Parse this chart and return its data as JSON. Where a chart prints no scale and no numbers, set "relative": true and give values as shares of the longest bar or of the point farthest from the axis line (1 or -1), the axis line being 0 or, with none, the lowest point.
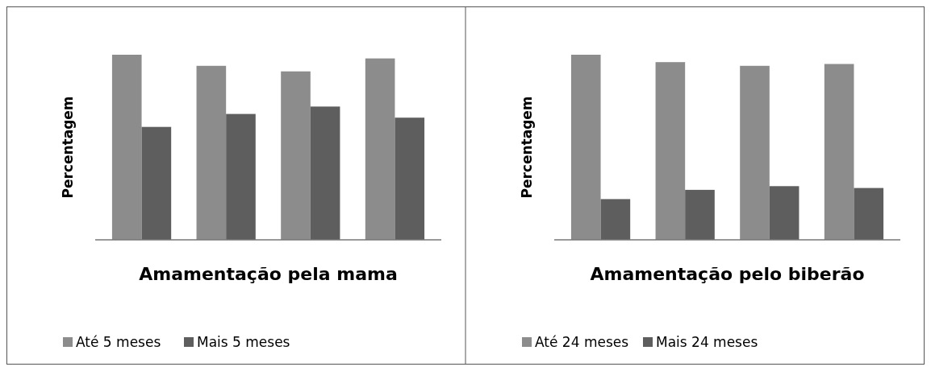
{
  "chart_data": [
    {
      "type": "bar",
      "relative": true,
      "categories": [
        null,
        null,
        null,
        null
      ],
      "xlabel": "Amamentação pela mama",
      "ylabel": "Percentagem",
      "legend": "bottom",
      "series": [
        {
          "name": "Até 5 meses",
          "color": "#8c8c8c",
          "values": [
            1,
            0.94,
            0.91,
            0.98
          ]
        },
        {
          "name": "Mais 5 meses",
          "color": "#5e5e5e",
          "values": [
            0.61,
            0.68,
            0.72,
            0.66
          ]
        }
      ]
    },
    {
      "type": "bar",
      "relative": true,
      "categories": [
        null,
        null,
        null,
        null
      ],
      "xlabel": "Amamentação pelo biberão",
      "ylabel": "Percentagem",
      "legend": "bottom",
      "series": [
        {
          "name": "Até 24 meses",
          "color": "#8c8c8c",
          "values": [
            1,
            0.96,
            0.94,
            0.95
          ]
        },
        {
          "name": "Mais 24 meses",
          "color": "#5e5e5e",
          "values": [
            0.22,
            0.27,
            0.29,
            0.28
          ]
        }
      ]
    }
  ]
}
